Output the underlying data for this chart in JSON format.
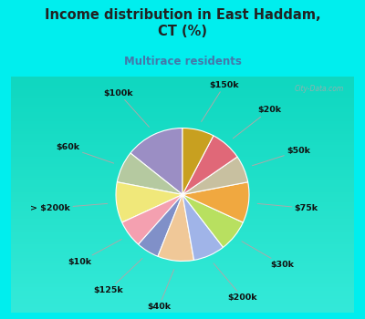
{
  "title": "Income distribution in East Haddam,\nCT (%)",
  "subtitle": "Multirace residents",
  "title_color": "#222222",
  "subtitle_color": "#4477aa",
  "background_color": "#00eeee",
  "chart_bg_top": "#d8f0e8",
  "chart_bg_bottom": "#c8e8d8",
  "labels": [
    "$100k",
    "$60k",
    "> $200k",
    "$10k",
    "$125k",
    "$40k",
    "$200k",
    "$30k",
    "$75k",
    "$50k",
    "$20k",
    "$150k"
  ],
  "values": [
    13,
    7,
    9,
    6,
    5,
    8,
    7,
    7,
    9,
    6,
    7,
    7
  ],
  "colors": [
    "#9b8ec4",
    "#b5c9a0",
    "#f0e87a",
    "#f4a0b0",
    "#8090c8",
    "#f0c898",
    "#a0b4e8",
    "#b8e060",
    "#f0a840",
    "#c8c0a0",
    "#e06878",
    "#c8a020"
  ],
  "start_angle": 90,
  "figsize": [
    4.0,
    3.5
  ],
  "dpi": 100
}
